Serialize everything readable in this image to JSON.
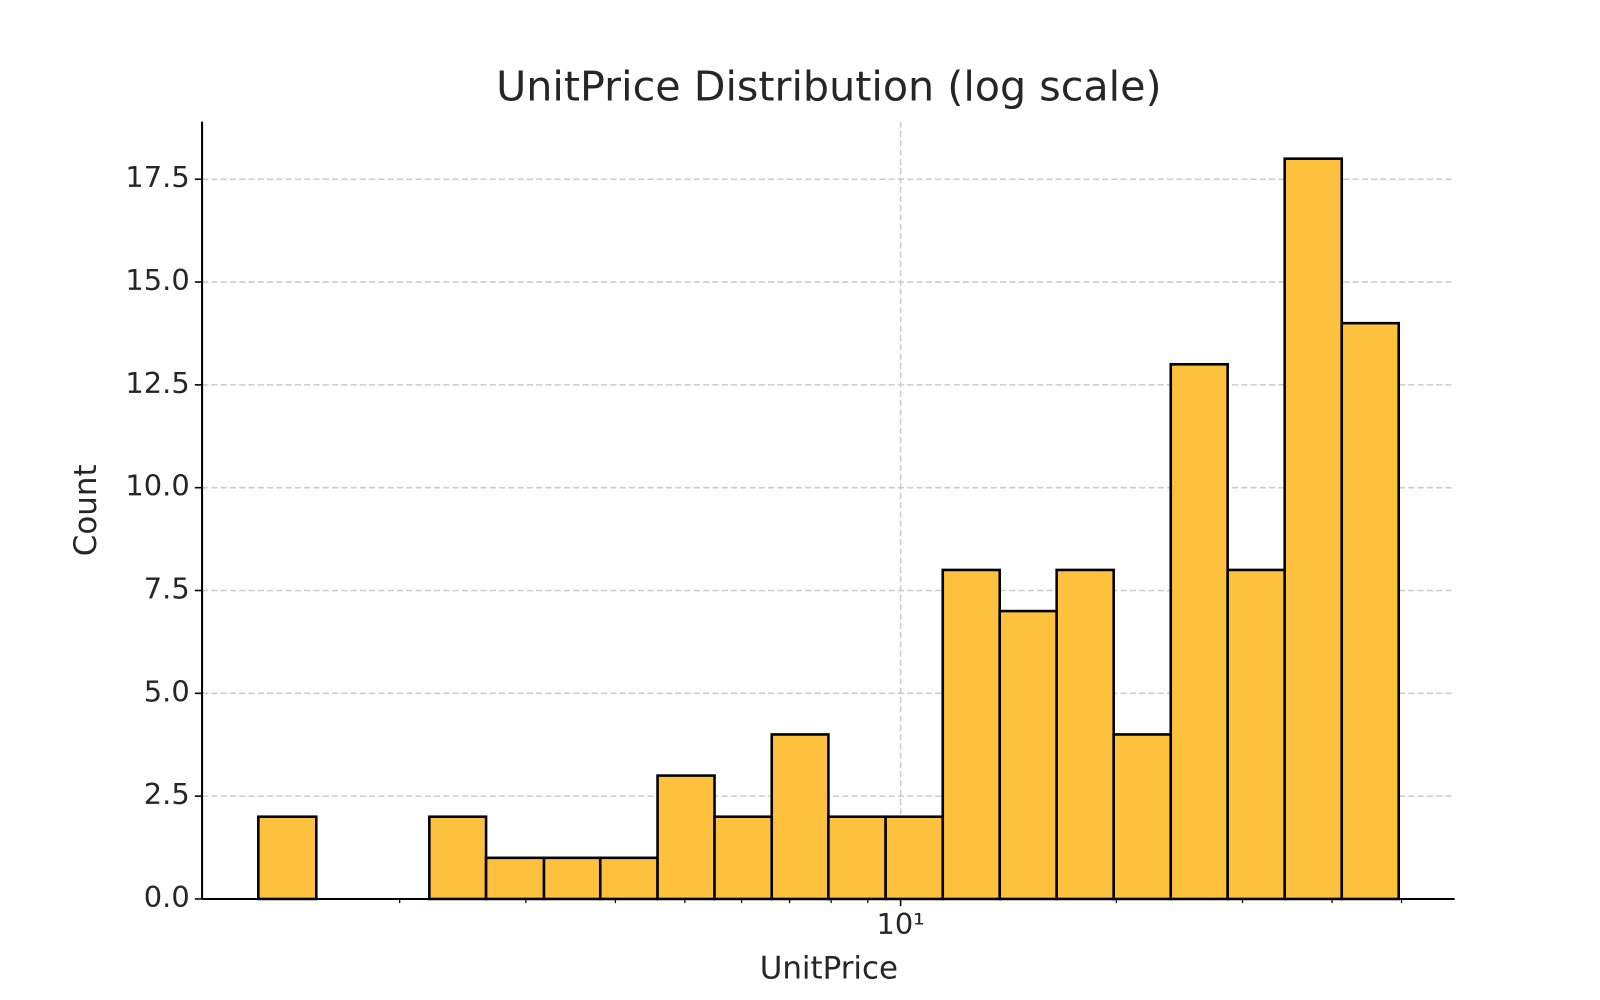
{
  "chart_data": {
    "type": "histogram",
    "title": "UnitPrice Distribution (log scale)",
    "x_label": "UnitPrice",
    "y_label": "Count",
    "x_scale": "log",
    "bins": [
      1.27,
      1.53,
      1.83,
      2.2,
      2.64,
      3.18,
      3.81,
      4.58,
      5.5,
      6.61,
      7.93,
      9.53,
      11.45,
      13.75,
      16.51,
      19.83,
      23.82,
      28.6,
      34.35,
      41.26,
      49.55
    ],
    "values": [
      2,
      0,
      0,
      2,
      1,
      1,
      1,
      3,
      2,
      4,
      2,
      2,
      8,
      7,
      8,
      4,
      13,
      8,
      18,
      14
    ],
    "color": "#fdc13e",
    "edge_color": "#000000",
    "xlim": [
      1.06,
      59.3
    ],
    "xticks": [
      {
        "value": 10,
        "label": "10¹"
      }
    ],
    "xminor_ticks": [
      2,
      3,
      4,
      5,
      6,
      7,
      8,
      9,
      20,
      30,
      40,
      50
    ],
    "ylim": [
      0,
      18.9
    ],
    "yticks": [
      {
        "value": 0,
        "label": "0.0"
      },
      2.5,
      {
        "value": 5,
        "label": "5.0"
      },
      7.5,
      {
        "value": 10,
        "label": "10.0"
      },
      12.5,
      {
        "value": 15,
        "label": "15.0"
      },
      17.5
    ],
    "grid": true
  }
}
